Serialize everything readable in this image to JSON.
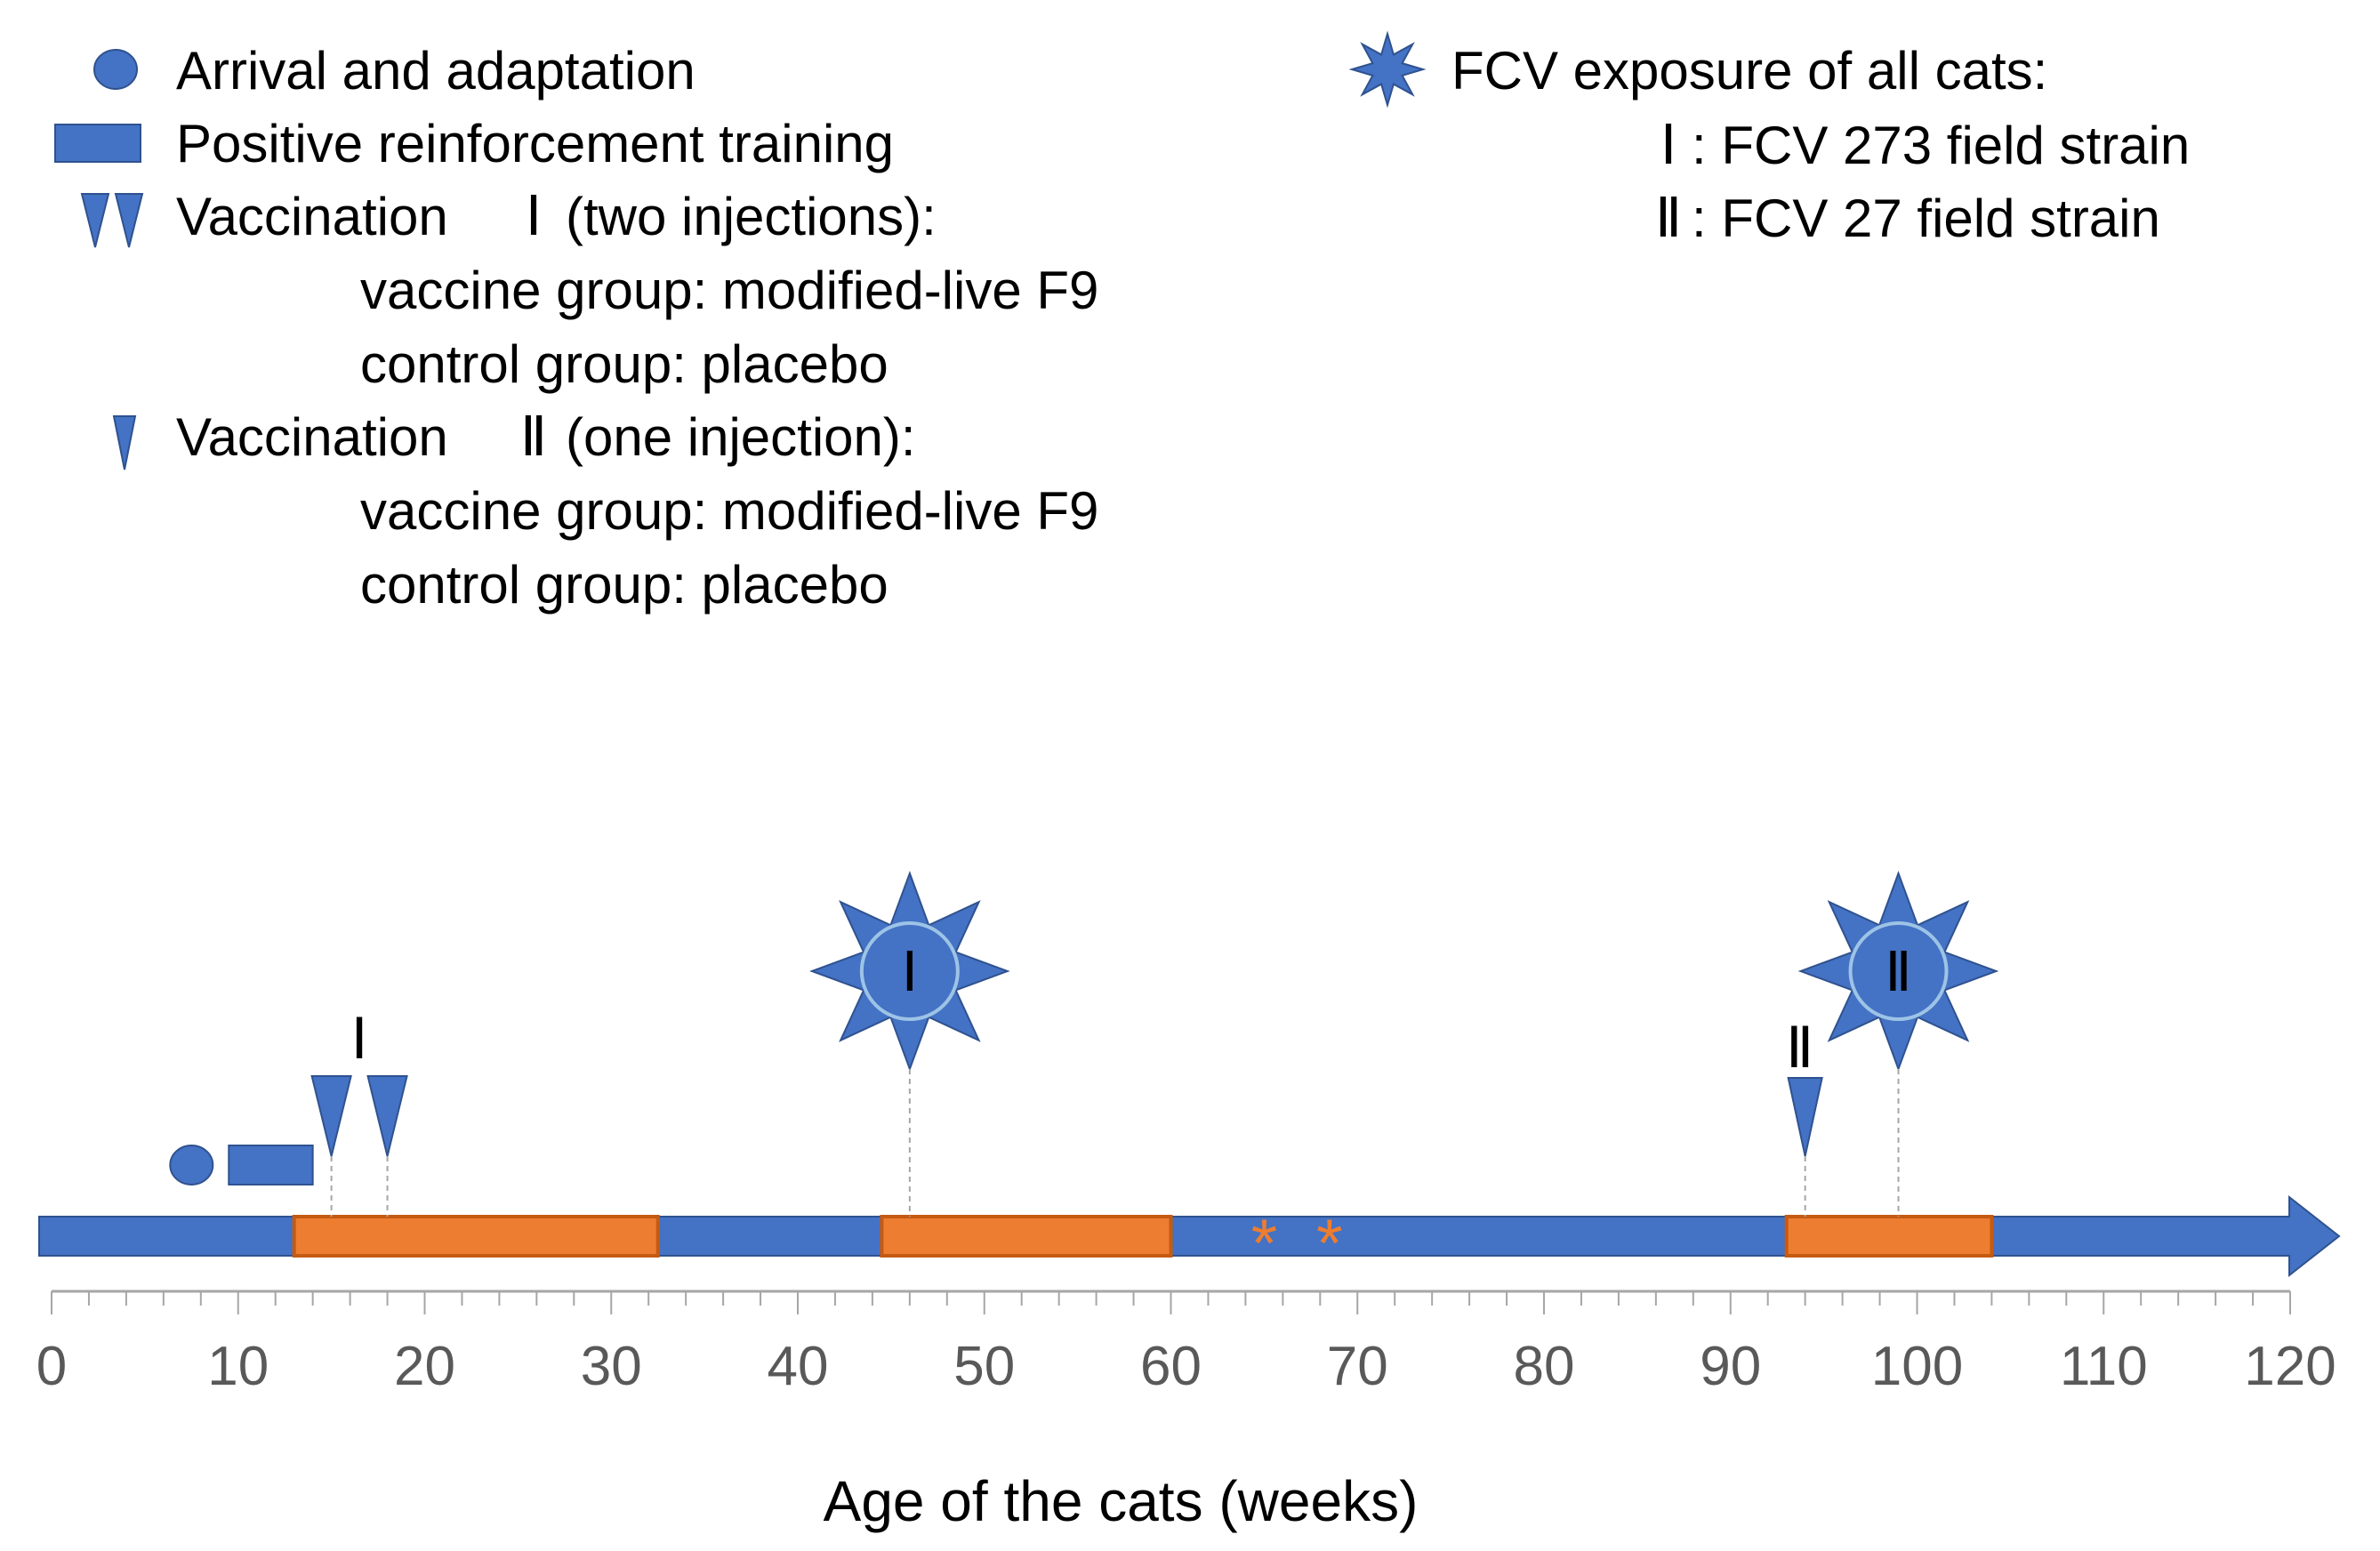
{
  "legend": {
    "arrival": "Arrival and adaptation",
    "training": "Positive reinforcement training",
    "vacc1": {
      "label": "Vaccination",
      "numeral": "Ⅰ",
      "suffix": "(two injections):",
      "vaccine": "vaccine group: modified-live F9",
      "control": "control group: placebo"
    },
    "vacc2": {
      "label": "Vaccination",
      "numeral": "Ⅱ",
      "suffix": "(one injection):",
      "vaccine": "vaccine group: modified-live F9",
      "control": "control group: placebo"
    },
    "exposure": {
      "label": "FCV exposure of all cats:",
      "strain1_numeral": "Ⅰ",
      "strain1": ": FCV 273 field strain",
      "strain2_numeral": "Ⅱ",
      "strain2": ": FCV 27 field strain"
    }
  },
  "chart_data": {
    "type": "timeline",
    "xlabel": "Age of the cats (weeks)",
    "xlim": [
      0,
      120
    ],
    "major_ticks": [
      0,
      10,
      20,
      30,
      40,
      50,
      60,
      70,
      80,
      90,
      100,
      110,
      120
    ],
    "minor_tick_step": 2,
    "events": {
      "arrival_week": 7.5,
      "training_weeks": [
        9.5,
        14
      ],
      "vaccination_1_weeks": [
        15,
        18
      ],
      "vaccination_1_label": "Ⅰ",
      "vaccination_2_week": 94,
      "vaccination_2_label": "Ⅱ",
      "exposure_1_week": 46,
      "exposure_1_label": "Ⅰ",
      "exposure_2_week": 99,
      "exposure_2_label": "Ⅱ"
    },
    "orange_periods": [
      [
        13,
        32.5
      ],
      [
        44.5,
        60
      ],
      [
        93,
        104
      ]
    ],
    "asterisks": [
      {
        "week": 65,
        "label": "*"
      },
      {
        "week": 68.5,
        "label": "*"
      }
    ]
  },
  "colors": {
    "blue": "#4472c4",
    "blue_dark": "#2f528f",
    "orange": "#ed7d31",
    "orange_dark": "#c55a11",
    "axis": "#a6a6a6",
    "axis_text": "#595959"
  }
}
